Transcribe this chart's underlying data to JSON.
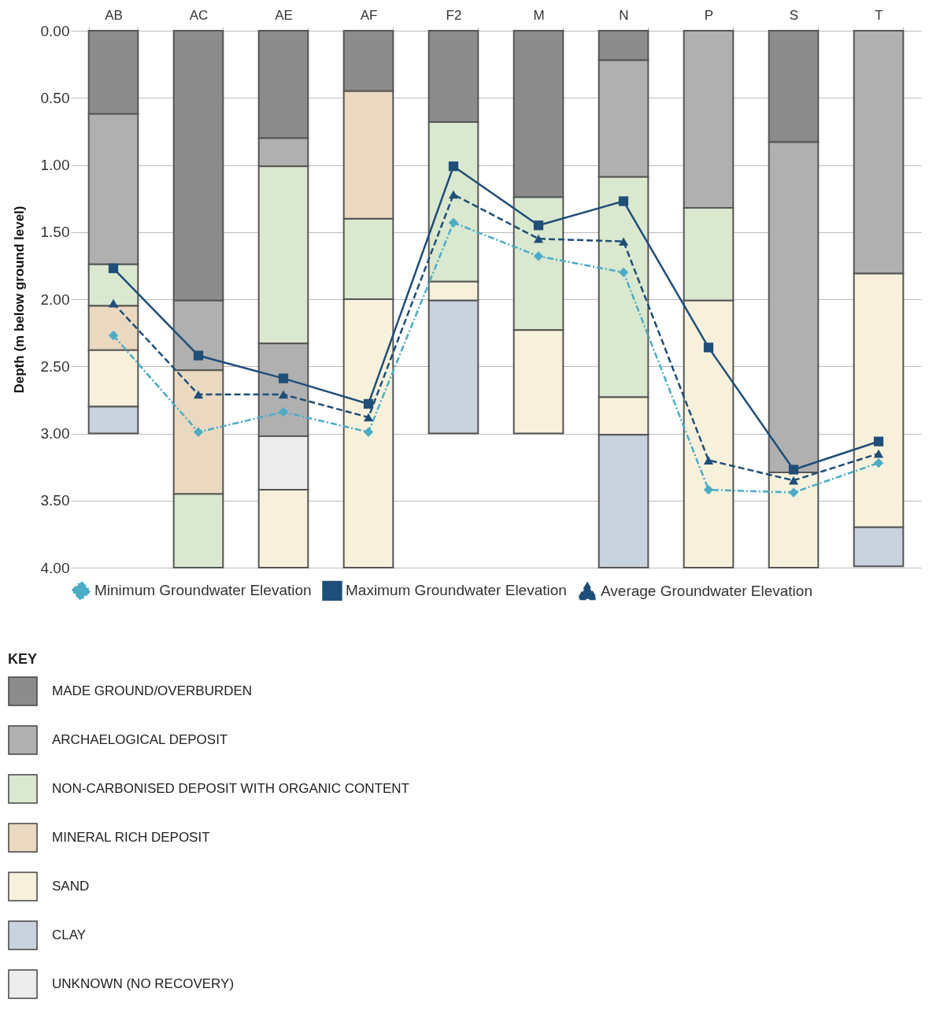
{
  "chart_data": {
    "type": "bar",
    "ylabel": "Depth (m below ground level)",
    "legend_title": "KEY",
    "categories": [
      "AB",
      "AC",
      "AE",
      "AF",
      "F2",
      "M",
      "N",
      "P",
      "S",
      "T"
    ],
    "ylim": [
      4,
      0
    ],
    "yticks": [
      {
        "value": 0,
        "label": "0.00"
      },
      {
        "value": 0.5,
        "label": "0.50"
      },
      {
        "value": 1,
        "label": "1.00"
      },
      {
        "value": 1.5,
        "label": "1.50"
      },
      {
        "value": 2,
        "label": "2.00"
      },
      {
        "value": 2.5,
        "label": "2.50"
      },
      {
        "value": 3,
        "label": "3.00"
      },
      {
        "value": 3.5,
        "label": "3.50"
      },
      {
        "value": 4,
        "label": "4.00"
      }
    ],
    "grid": "y",
    "legend": "bottom",
    "series": [
      {
        "name": "MADE GROUND/OVERBURDEN",
        "color": "#8c8c8c",
        "base": [
          0,
          0,
          0,
          0,
          0,
          0,
          0,
          null,
          0,
          null
        ],
        "values": [
          0.62,
          2.01,
          0.8,
          0.45,
          0.68,
          1.24,
          0.22,
          null,
          0.83,
          null
        ]
      },
      {
        "name": "ARCHAELOGICAL DEPOSIT",
        "color": "#b0b0b0",
        "base": [
          0.62,
          2.01,
          0.8,
          null,
          null,
          null,
          0.22,
          0,
          0.83,
          0
        ],
        "values": [
          1.12,
          0.52,
          0.21,
          null,
          null,
          null,
          0.87,
          1.32,
          2.46,
          1.81
        ]
      },
      {
        "name": "NON-CARBONISED DEPOSIT WITH ORGANIC CONTENT",
        "color": "#d9e8cf",
        "base": [
          1.74,
          3.45,
          1.01,
          1.4,
          0.68,
          1.24,
          1.09,
          1.32,
          null,
          null
        ],
        "values": [
          0.31,
          0.55,
          1.32,
          0.6,
          1.19,
          0.99,
          1.64,
          0.69,
          null,
          null
        ]
      },
      {
        "name": "MINERAL RICH DEPOSIT",
        "color": "#ead9c0",
        "base": [
          2.05,
          2.53,
          null,
          0.45,
          null,
          null,
          null,
          null,
          null,
          null
        ],
        "values": [
          0.33,
          0.92,
          null,
          0.95,
          null,
          null,
          null,
          null,
          null,
          null
        ]
      },
      {
        "name": "SAND",
        "color": "#f7f1dc",
        "base": [
          2.38,
          null,
          3.42,
          2,
          1.87,
          2.23,
          2.73,
          2.01,
          3.29,
          1.81
        ],
        "values": [
          0.42,
          null,
          0.58,
          2,
          0.14,
          0.77,
          0.28,
          1.99,
          0.71,
          1.89
        ]
      },
      {
        "name": "CLAY",
        "color": "#c9d3df",
        "base": [
          2.8,
          null,
          null,
          null,
          2.01,
          null,
          3.01,
          null,
          null,
          3.7
        ],
        "values": [
          0.2,
          null,
          null,
          null,
          0.99,
          null,
          0.99,
          null,
          null,
          0.29
        ]
      },
      {
        "name": "UNKNOWN (NO RECOVERY)",
        "color": "#ececec",
        "base": [
          null,
          null,
          3.02,
          null,
          null,
          null,
          null,
          null,
          null,
          null
        ],
        "values": [
          null,
          null,
          0.4,
          null,
          null,
          null,
          null,
          null,
          null,
          null
        ]
      },
      {
        "color": "#b0b0b0",
        "base": [
          null,
          null,
          2.33,
          null,
          null,
          null,
          null,
          null,
          null,
          null
        ],
        "values": [
          null,
          null,
          0.69,
          null,
          null,
          null,
          null,
          null,
          null,
          null
        ]
      },
      {
        "name": "Minimum Groundwater Elevation",
        "type": "line",
        "color": "#4bacc6",
        "marker": "diamond",
        "line_style": "dotted",
        "values": [
          2.27,
          2.99,
          2.84,
          2.99,
          1.43,
          1.68,
          1.8,
          3.42,
          3.44,
          3.22
        ]
      },
      {
        "name": "Maximum Groundwater Elevation",
        "type": "line",
        "color": "#1f4e79",
        "marker": "square",
        "line_style": "solid",
        "values": [
          1.77,
          2.42,
          2.59,
          2.78,
          1.01,
          1.45,
          1.27,
          2.36,
          3.27,
          3.06
        ]
      },
      {
        "name": "Average Groundwater Elevation",
        "type": "line",
        "color": "#1f4e79",
        "marker": "triangle",
        "line_style": "dashed",
        "values": [
          2.03,
          2.71,
          2.71,
          2.88,
          1.22,
          1.55,
          1.57,
          3.2,
          3.35,
          3.15
        ]
      }
    ]
  }
}
